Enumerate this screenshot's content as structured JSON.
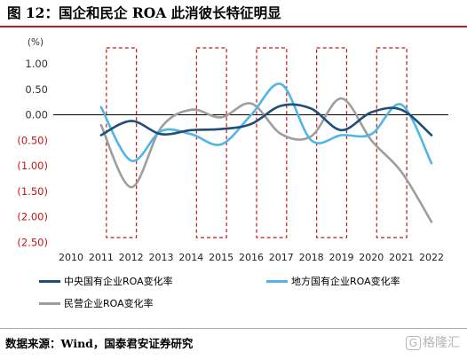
{
  "title": "图 12：国企和民企 ROA 此消彼长特征明显",
  "source": "数据来源：Wind，国泰君安证券研究",
  "watermark": "格隆汇",
  "chart_data": {
    "type": "line",
    "unit": "(%)",
    "x": [
      "2010",
      "2011",
      "2012",
      "2013",
      "2014",
      "2015",
      "2016",
      "2017",
      "2018",
      "2019",
      "2020",
      "2021",
      "2022"
    ],
    "ylim": [
      -2.5,
      1.0
    ],
    "yticks": [
      1.0,
      0.5,
      0.0,
      -0.5,
      -1.0,
      -1.5,
      -2.0,
      -2.5
    ],
    "ytick_labels": [
      "1.00",
      "0.50",
      "0.00",
      "(0.50)",
      "(1.00)",
      "(1.50)",
      "(2.00)",
      "(2.50)"
    ],
    "tick_colors": {
      "positive": "#333333",
      "negative": "#c0181b"
    },
    "highlight_ranges": [
      [
        "2011",
        "2012"
      ],
      [
        "2014",
        "2015"
      ],
      [
        "2016",
        "2017"
      ],
      [
        "2018",
        "2019"
      ],
      [
        "2020",
        "2021"
      ]
    ],
    "highlight_color": "#c0181b",
    "grid": false,
    "legend_position": "bottom",
    "series": [
      {
        "name": "中央国有企业ROA变化率",
        "color": "#1f4e79",
        "values": [
          null,
          -0.4,
          -0.12,
          -0.38,
          -0.3,
          -0.28,
          -0.18,
          0.18,
          0.12,
          -0.3,
          0.05,
          0.1,
          -0.4
        ]
      },
      {
        "name": "地方国有企业ROA变化率",
        "color": "#4fb6e6",
        "values": [
          null,
          0.15,
          -0.9,
          -0.32,
          -0.38,
          -0.58,
          0.0,
          0.6,
          -0.5,
          -0.4,
          -0.38,
          0.2,
          -0.95
        ]
      },
      {
        "name": "民营企业ROA变化率",
        "color": "#9e9e9e",
        "values": [
          null,
          -0.2,
          -1.42,
          -0.25,
          0.1,
          -0.05,
          0.22,
          -0.38,
          -0.42,
          0.32,
          -0.5,
          -1.12,
          -2.1
        ]
      }
    ]
  }
}
